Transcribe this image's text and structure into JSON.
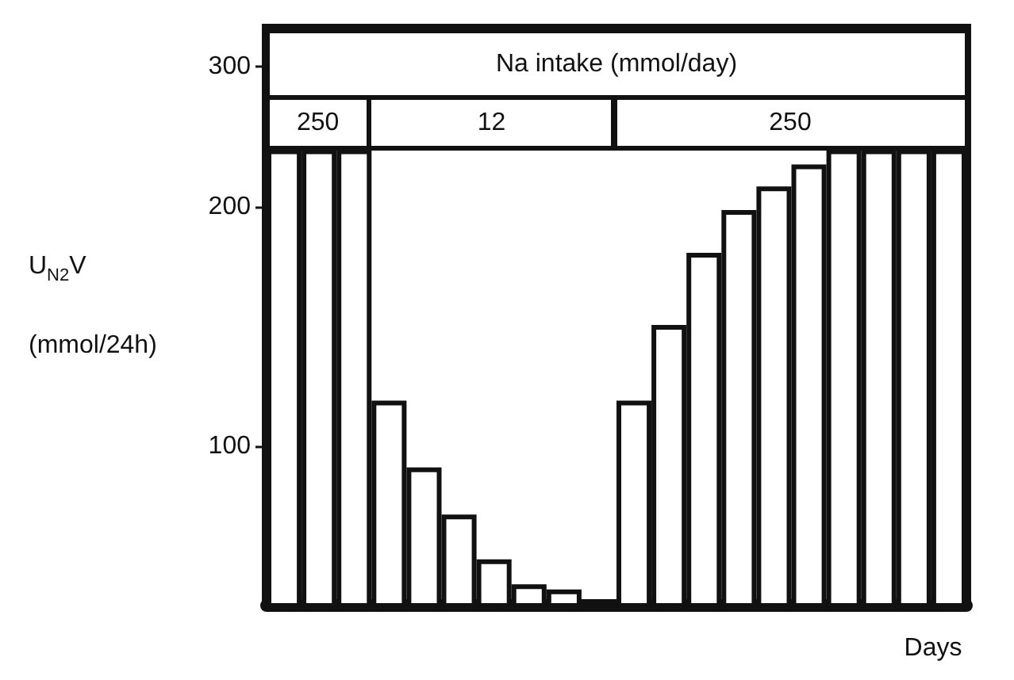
{
  "chart_data": {
    "type": "bar",
    "ylabel": "U$_{N2}$V\n(mmol/24h)",
    "xlabel": "Days",
    "categories": [
      null,
      null,
      null,
      null,
      null,
      null,
      null,
      null,
      null,
      null,
      null,
      null,
      null,
      null,
      null,
      null,
      null,
      null,
      null,
      null
    ],
    "values": [
      236,
      236,
      236,
      114,
      94,
      82,
      72,
      67,
      66,
      null,
      114,
      142,
      175,
      198,
      212,
      226,
      236,
      236,
      236,
      236
    ],
    "color": "#ffffff",
    "log": true,
    "ylim": [
      63,
      335
    ],
    "yticks": [
      100,
      200,
      300
    ],
    "tick_labels": "y",
    "annotations": [
      "Na intake (mmol/day)",
      "250",
      "12",
      "250"
    ]
  }
}
